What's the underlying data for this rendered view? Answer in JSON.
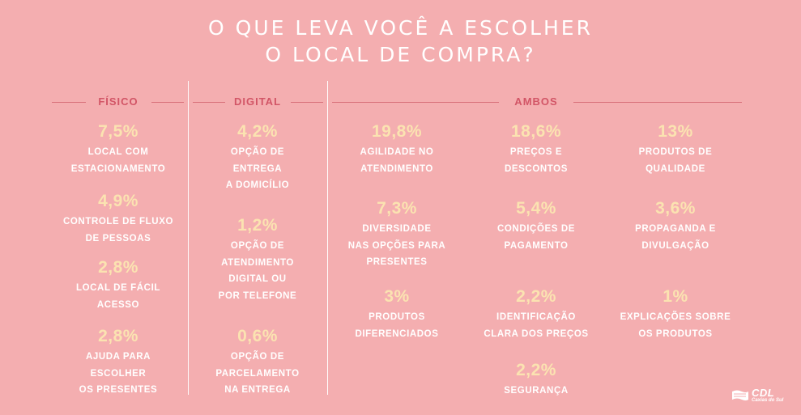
{
  "title": {
    "line1": "O QUE LEVA VOCÊ A ESCOLHER",
    "line2": "O LOCAL DE COMPRA?"
  },
  "sections": {
    "fisico": "FÍSICO",
    "digital": "DIGITAL",
    "ambos": "AMBOS"
  },
  "fisico": [
    {
      "value": "7,5%",
      "desc": "LOCAL COM\nESTACIONAMENTO"
    },
    {
      "value": "4,9%",
      "desc": "CONTROLE DE FLUXO\nDE PESSOAS"
    },
    {
      "value": "2,8%",
      "desc": "LOCAL DE FÁCIL\nACESSO"
    },
    {
      "value": "2,8%",
      "desc": "AJUDA PARA\nESCOLHER\nOS PRESENTES"
    }
  ],
  "digital": [
    {
      "value": "4,2%",
      "desc": "OPÇÃO DE\nENTREGA\nA DOMICÍLIO"
    },
    {
      "value": "1,2%",
      "desc": "OPÇÃO DE\nATENDIMENTO\nDIGITAL OU\nPOR TELEFONE"
    },
    {
      "value": "0,6%",
      "desc": "OPÇÃO DE\nPARCELAMENTO\nNA ENTREGA"
    }
  ],
  "ambos": [
    {
      "value": "19,8%",
      "desc": "AGILIDADE NO\nATENDIMENTO"
    },
    {
      "value": "18,6%",
      "desc": "PREÇOS E\nDESCONTOS"
    },
    {
      "value": "13%",
      "desc": "PRODUTOS DE\nQUALIDADE"
    },
    {
      "value": "7,3%",
      "desc": "DIVERSIDADE\nNAS OPÇÕES PARA\nPRESENTES"
    },
    {
      "value": "5,4%",
      "desc": "CONDIÇÕES DE\nPAGAMENTO"
    },
    {
      "value": "3,6%",
      "desc": "PROPAGANDA E\nDIVULGAÇÃO"
    },
    {
      "value": "3%",
      "desc": "PRODUTOS\nDIFERENCIADOS"
    },
    {
      "value": "2,2%",
      "desc": "IDENTIFICAÇÃO\nCLARA DOS PREÇOS"
    },
    {
      "value": "1%",
      "desc": "EXPLICAÇÕES SOBRE\nOS PRODUTOS"
    },
    {
      "value": "2,2%",
      "desc": "SEGURANÇA"
    }
  ],
  "logo": {
    "name": "CDL",
    "sub": "Caxias do Sul"
  },
  "colors": {
    "background": "#f4aeb0",
    "value": "#fbe3b1",
    "section_label": "#d25566",
    "text": "#ffffff"
  }
}
